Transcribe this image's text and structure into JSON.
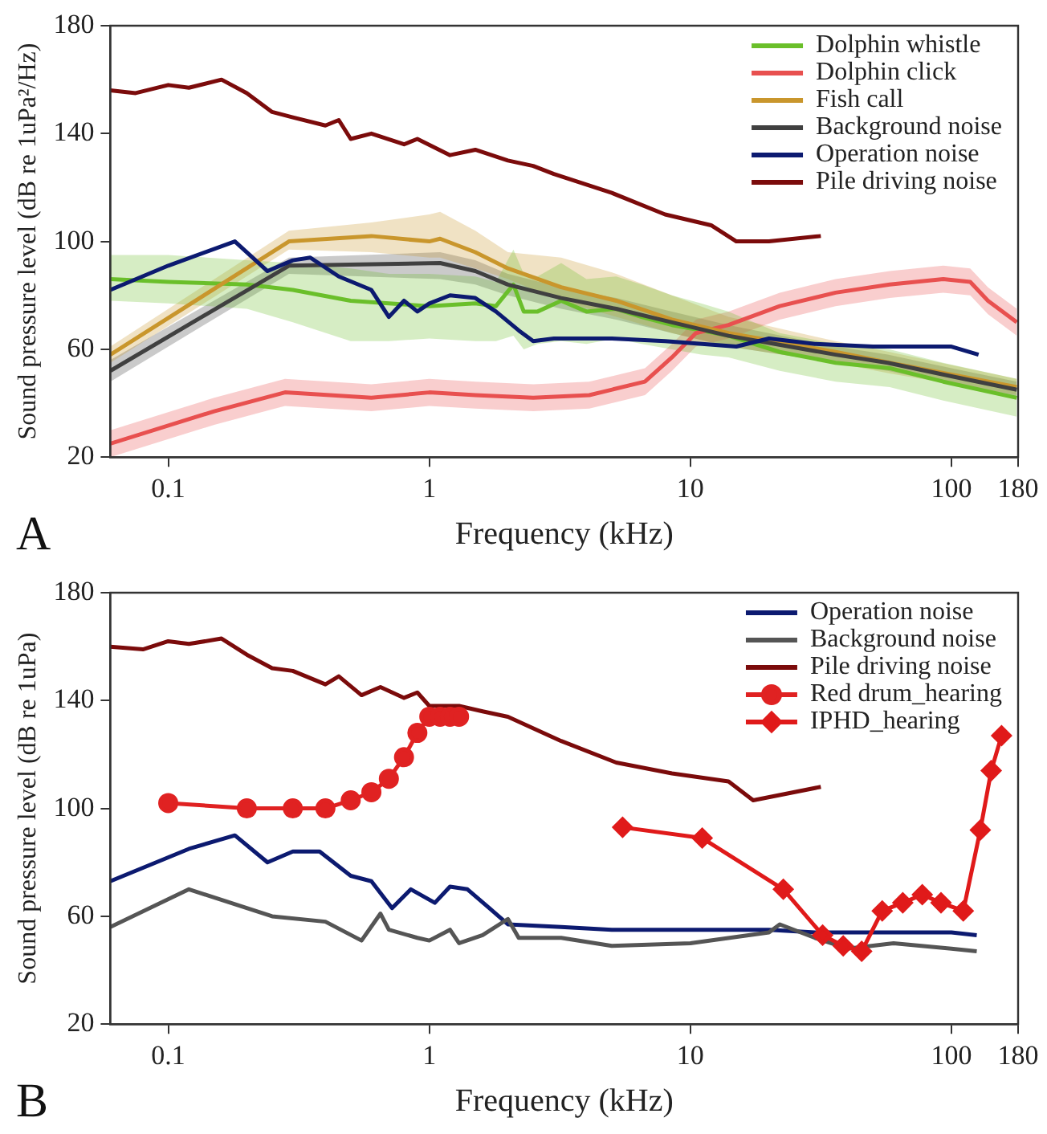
{
  "chart_data": [
    {
      "type": "line",
      "xlabel": "Frequency (kHz)",
      "ylabel": "Sound pressure level (dB re 1uPa²/Hz)",
      "annotations": [
        "A"
      ],
      "log": "x",
      "xlim": [
        0.06,
        180
      ],
      "xticks": [
        0.1,
        1,
        10,
        100,
        180
      ],
      "ylim": [
        20,
        180
      ],
      "yticks": [
        20,
        60,
        100,
        140,
        180
      ],
      "grid": false,
      "legend": "top right",
      "marker": "none",
      "line_style": "solid",
      "series": [
        {
          "name": "Dolphin whistle",
          "color": "#6abf2a",
          "x": [
            0.06,
            0.1,
            0.2,
            0.3,
            0.5,
            0.7,
            1,
            1.5,
            1.8,
            2.1,
            2.3,
            2.6,
            3.2,
            4,
            5.2,
            6.5,
            8.5,
            11,
            14,
            22,
            36,
            58,
            93,
            178
          ],
          "values": [
            86,
            85,
            84,
            82,
            78,
            77,
            76,
            77,
            76,
            84,
            74,
            74,
            78,
            74,
            75,
            72,
            69,
            67,
            65,
            59,
            55,
            53,
            48,
            42
          ],
          "lower": [
            78,
            77,
            75,
            70,
            63,
            63,
            64,
            63,
            63,
            65,
            60,
            62,
            63,
            62,
            64,
            62,
            60,
            58,
            57,
            52,
            48,
            46,
            41,
            35
          ],
          "upper": [
            95,
            95,
            93,
            92,
            90,
            88,
            88,
            87,
            85,
            97,
            88,
            87,
            92,
            86,
            87,
            84,
            80,
            77,
            74,
            66,
            62,
            60,
            55,
            49
          ]
        },
        {
          "name": "Dolphin click",
          "color": "#e8504f",
          "x": [
            0.06,
            0.15,
            0.28,
            0.6,
            1,
            1.5,
            2.5,
            4.1,
            6.7,
            8.5,
            10.5,
            14,
            22,
            36,
            58,
            93,
            118,
            138,
            178
          ],
          "values": [
            25,
            37,
            44,
            42,
            44,
            43,
            42,
            43,
            48,
            57,
            66,
            69,
            76,
            81,
            84,
            86,
            85,
            78,
            70
          ],
          "lower": [
            20,
            32,
            39,
            37,
            39,
            38,
            37,
            38,
            43,
            52,
            61,
            64,
            71,
            76,
            79,
            81,
            80,
            73,
            65
          ],
          "upper": [
            30,
            42,
            49,
            47,
            49,
            48,
            47,
            48,
            53,
            62,
            71,
            74,
            81,
            86,
            89,
            91,
            90,
            83,
            75
          ]
        },
        {
          "name": "Fish call",
          "color": "#c9962c",
          "x": [
            0.06,
            0.29,
            0.6,
            1,
            1.1,
            1.5,
            2,
            3.2,
            5.2,
            8.5,
            14,
            36,
            58,
            178
          ],
          "values": [
            58,
            100,
            102,
            100,
            101,
            96,
            90,
            83,
            78,
            71,
            66,
            59,
            55,
            46
          ],
          "lower": [
            55,
            97,
            96,
            94,
            94,
            90,
            86,
            78,
            72,
            66,
            61,
            55,
            51,
            43
          ],
          "upper": [
            61,
            104,
            107,
            110,
            111,
            104,
            96,
            94,
            88,
            80,
            72,
            63,
            59,
            49
          ]
        },
        {
          "name": "Background noise",
          "color": "#404040",
          "x": [
            0.06,
            0.29,
            1.1,
            1.5,
            2,
            3.2,
            5.2,
            8.5,
            14,
            36,
            57,
            100,
            178
          ],
          "values": [
            52,
            91,
            92,
            89,
            84,
            79,
            75,
            70,
            65,
            58,
            55,
            50,
            45
          ],
          "lower": [
            48,
            88,
            86,
            84,
            80,
            75,
            71,
            66,
            61,
            55,
            52,
            47,
            42
          ],
          "upper": [
            56,
            94,
            96,
            93,
            88,
            83,
            79,
            74,
            69,
            61,
            58,
            53,
            48
          ]
        },
        {
          "name": "Operation noise",
          "color": "#0c1a70",
          "x": [
            0.06,
            0.1,
            0.18,
            0.24,
            0.3,
            0.35,
            0.45,
            0.6,
            0.7,
            0.8,
            0.9,
            1,
            1.2,
            1.5,
            1.8,
            2.2,
            2.5,
            3,
            5,
            8,
            15,
            20,
            30,
            50,
            100,
            127
          ],
          "values": [
            82,
            91,
            100,
            89,
            93,
            94,
            87,
            82,
            72,
            78,
            74,
            77,
            80,
            79,
            74,
            67,
            63,
            64,
            64,
            63,
            61,
            64,
            62,
            61,
            61,
            58
          ]
        },
        {
          "name": "Pile driving noise",
          "color": "#7b0b0b",
          "x": [
            0.06,
            0.075,
            0.1,
            0.12,
            0.16,
            0.2,
            0.25,
            0.3,
            0.4,
            0.45,
            0.5,
            0.6,
            0.8,
            0.9,
            1.2,
            1.5,
            2,
            2.5,
            3,
            5,
            8,
            12,
            15,
            20,
            31.6
          ],
          "values": [
            156,
            155,
            158,
            157,
            160,
            155,
            148,
            146,
            143,
            145,
            138,
            140,
            136,
            138,
            132,
            134,
            130,
            128,
            125,
            118,
            110,
            106,
            100,
            100,
            102
          ]
        }
      ]
    },
    {
      "type": "line",
      "xlabel": "Frequency (kHz)",
      "ylabel": "Sound pressure level (dB re 1uPa)",
      "annotations": [
        "B"
      ],
      "log": "x",
      "xlim": [
        0.06,
        180
      ],
      "xticks": [
        0.1,
        1,
        10,
        100,
        180
      ],
      "ylim": [
        20,
        180
      ],
      "yticks": [
        20,
        60,
        100,
        140,
        180
      ],
      "grid": false,
      "legend": "top right",
      "marker": "none",
      "line_style": "solid",
      "series": [
        {
          "name": "Operation noise",
          "color": "#0c1a70",
          "x": [
            0.06,
            0.12,
            0.18,
            0.24,
            0.3,
            0.38,
            0.5,
            0.6,
            0.72,
            0.85,
            1.05,
            1.2,
            1.4,
            1.7,
            2,
            3.2,
            5,
            10,
            20,
            30,
            60,
            100,
            125
          ],
          "values": [
            73,
            85,
            90,
            80,
            84,
            84,
            75,
            73,
            63,
            70,
            65,
            71,
            70,
            63,
            57,
            56,
            55,
            55,
            55,
            54,
            54,
            54,
            53
          ]
        },
        {
          "name": "Background noise",
          "color": "#555555",
          "x": [
            0.06,
            0.12,
            0.25,
            0.4,
            0.55,
            0.65,
            0.7,
            0.9,
            1,
            1.2,
            1.3,
            1.6,
            2,
            2.2,
            3.2,
            5,
            10,
            20,
            22,
            30,
            40,
            60,
            100,
            125
          ],
          "values": [
            56,
            70,
            60,
            58,
            51,
            61,
            55,
            52,
            51,
            55,
            50,
            53,
            59,
            52,
            52,
            49,
            50,
            54,
            57,
            52,
            48,
            50,
            48,
            47
          ]
        },
        {
          "name": "Pile driving noise",
          "color": "#7b0b0b",
          "x": [
            0.06,
            0.08,
            0.1,
            0.12,
            0.16,
            0.2,
            0.25,
            0.3,
            0.4,
            0.45,
            0.55,
            0.65,
            0.8,
            0.9,
            1,
            1.3,
            1.6,
            2,
            3.2,
            5.2,
            8.5,
            14,
            17.4,
            31.6
          ],
          "values": [
            160,
            159,
            162,
            161,
            163,
            157,
            152,
            151,
            146,
            149,
            142,
            145,
            141,
            143,
            138,
            138,
            136,
            134,
            125,
            117,
            113,
            110,
            103,
            108
          ]
        },
        {
          "name": "Red drum_hearing",
          "color": "#e02222",
          "marker": "circle",
          "x": [
            0.1,
            0.2,
            0.3,
            0.4,
            0.5,
            0.6,
            0.7,
            0.8,
            0.9,
            1,
            1.1,
            1.2,
            1.3
          ],
          "values": [
            102,
            100,
            100,
            100,
            103,
            106,
            111,
            119,
            128,
            134,
            134,
            134,
            134
          ]
        },
        {
          "name": "IPHD_hearing",
          "color": "#e01a1a",
          "marker": "diamond",
          "x": [
            5.5,
            11.1,
            22.7,
            32.1,
            38.5,
            45.3,
            54.3,
            65.1,
            77.3,
            91.2,
            111,
            129,
            142,
            155.6
          ],
          "values": [
            93,
            89,
            70,
            53,
            49,
            47,
            62,
            65,
            68,
            65,
            62,
            92,
            114,
            127
          ]
        }
      ]
    }
  ]
}
